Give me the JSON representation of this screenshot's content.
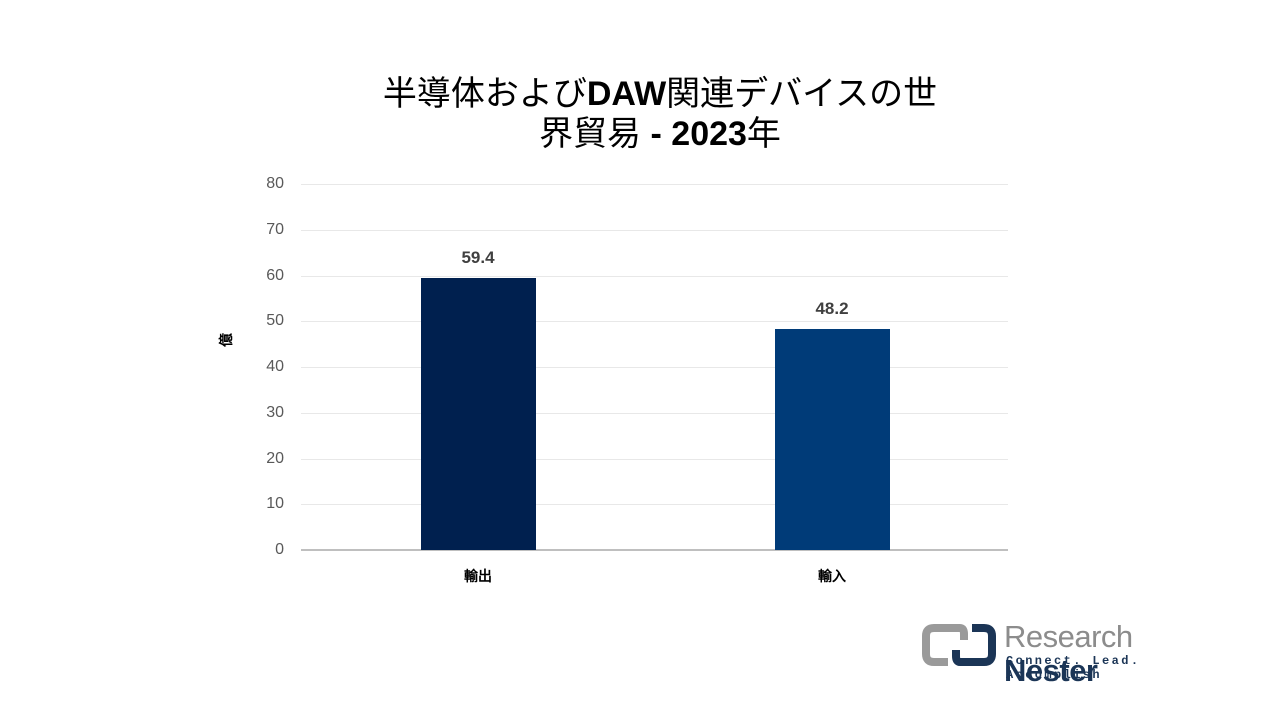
{
  "title": {
    "line1_part1": "半導体および",
    "line1_bold": "DAW",
    "line1_part2": "関連デバイスの世",
    "line2_part1": "界貿易 ",
    "line2_bold": "- 2023",
    "line2_part2": "年"
  },
  "axis": {
    "ylabel": "億",
    "yticks": [
      "80",
      "70",
      "60",
      "50",
      "40",
      "30",
      "20",
      "10",
      "0"
    ]
  },
  "bars": [
    {
      "label": "輸出",
      "value_label": "59.4",
      "color": "#00204F"
    },
    {
      "label": "輸入",
      "value_label": "48.2",
      "color": "#003B78"
    }
  ],
  "logo": {
    "word1": "Research",
    "word2": "Nester",
    "tagline": "Connect. Lead. Accomplish",
    "gray": "#8c8c8c",
    "navy": "#1b3556"
  },
  "chart_data": {
    "type": "bar",
    "title": "半導体およびDAW関連デバイスの世界貿易 - 2023年",
    "categories": [
      "輸出",
      "輸入"
    ],
    "values": [
      59.4,
      48.2
    ],
    "xlabel": "",
    "ylabel": "億",
    "ylim": [
      0,
      80
    ],
    "yticks": [
      0,
      10,
      20,
      30,
      40,
      50,
      60,
      70,
      80
    ],
    "grid": true,
    "legend": null,
    "data_labels": true,
    "colors": [
      "#00204F",
      "#003B78"
    ]
  }
}
